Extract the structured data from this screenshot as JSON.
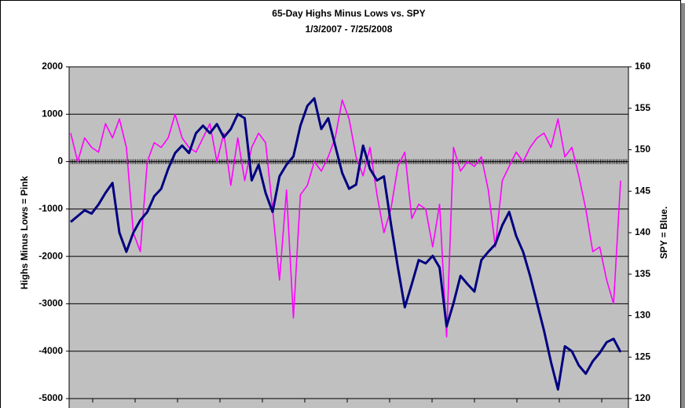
{
  "chart_data": {
    "type": "line",
    "title": "65-Day Highs Minus Lows vs. SPY",
    "subtitle": "1/3/2007 - 7/25/2008",
    "y_label": "Highs Minus Lows = Pink",
    "y2_label": "SPY = Blue.",
    "ylim": [
      -5000,
      2000
    ],
    "yticks": [
      -5000,
      -4000,
      -3000,
      -2000,
      -1000,
      0,
      1000,
      2000
    ],
    "y2lim": [
      120,
      160
    ],
    "y2ticks": [
      120,
      125,
      130,
      135,
      140,
      145,
      150,
      155,
      160
    ],
    "grid": true,
    "series": [
      {
        "color": "#ff00ff",
        "values": [
          600,
          0,
          500,
          300,
          200,
          800,
          500,
          900,
          300,
          -1500,
          -1900,
          0,
          400,
          300,
          500,
          1000,
          500,
          300,
          200,
          500,
          800,
          0,
          600,
          -500,
          500,
          -400,
          300,
          600,
          400,
          -1000,
          -2500,
          -600,
          -3300,
          -700,
          -500,
          0,
          -200,
          100,
          500,
          1300,
          900,
          100,
          -300,
          300,
          -700,
          -1500,
          -1000,
          -100,
          200,
          -1200,
          -900,
          -1000,
          -1800,
          -900,
          -3700,
          300,
          -200,
          0,
          -100,
          100,
          -600,
          -1800,
          -400,
          -100,
          200,
          0,
          300,
          500,
          600,
          300,
          900,
          100,
          300,
          -300,
          -1000,
          -1900,
          -1800,
          -2500,
          -3000,
          -400
        ]
      },
      {
        "color": "#000080",
        "axis": "y2",
        "values": [
          141.3,
          142,
          142.7,
          142.3,
          143.4,
          144.8,
          146,
          140,
          137.7,
          140,
          141.5,
          142.5,
          144.4,
          145.3,
          147.7,
          149.6,
          150.5,
          149.6,
          152,
          152.9,
          152,
          153.1,
          151.5,
          152.5,
          154.3,
          153.8,
          146.3,
          148.2,
          144.8,
          142.5,
          146.8,
          148.2,
          149.2,
          152.9,
          155.3,
          156.2,
          152.5,
          153.8,
          150.5,
          147.2,
          145.3,
          145.8,
          150.5,
          147.7,
          146.3,
          146.8,
          141.1,
          135.8,
          131,
          133.8,
          136.7,
          136.3,
          137.2,
          135.8,
          128.7,
          131.5,
          134.8,
          133.8,
          132.9,
          136.7,
          137.7,
          138.6,
          140.9,
          142.5,
          139.6,
          137.7,
          134.8,
          131.5,
          128.2,
          124.4,
          121.1,
          126.3,
          125.7,
          124,
          123,
          124.5,
          125.5,
          126.8,
          127.2,
          125.6
        ]
      }
    ]
  }
}
